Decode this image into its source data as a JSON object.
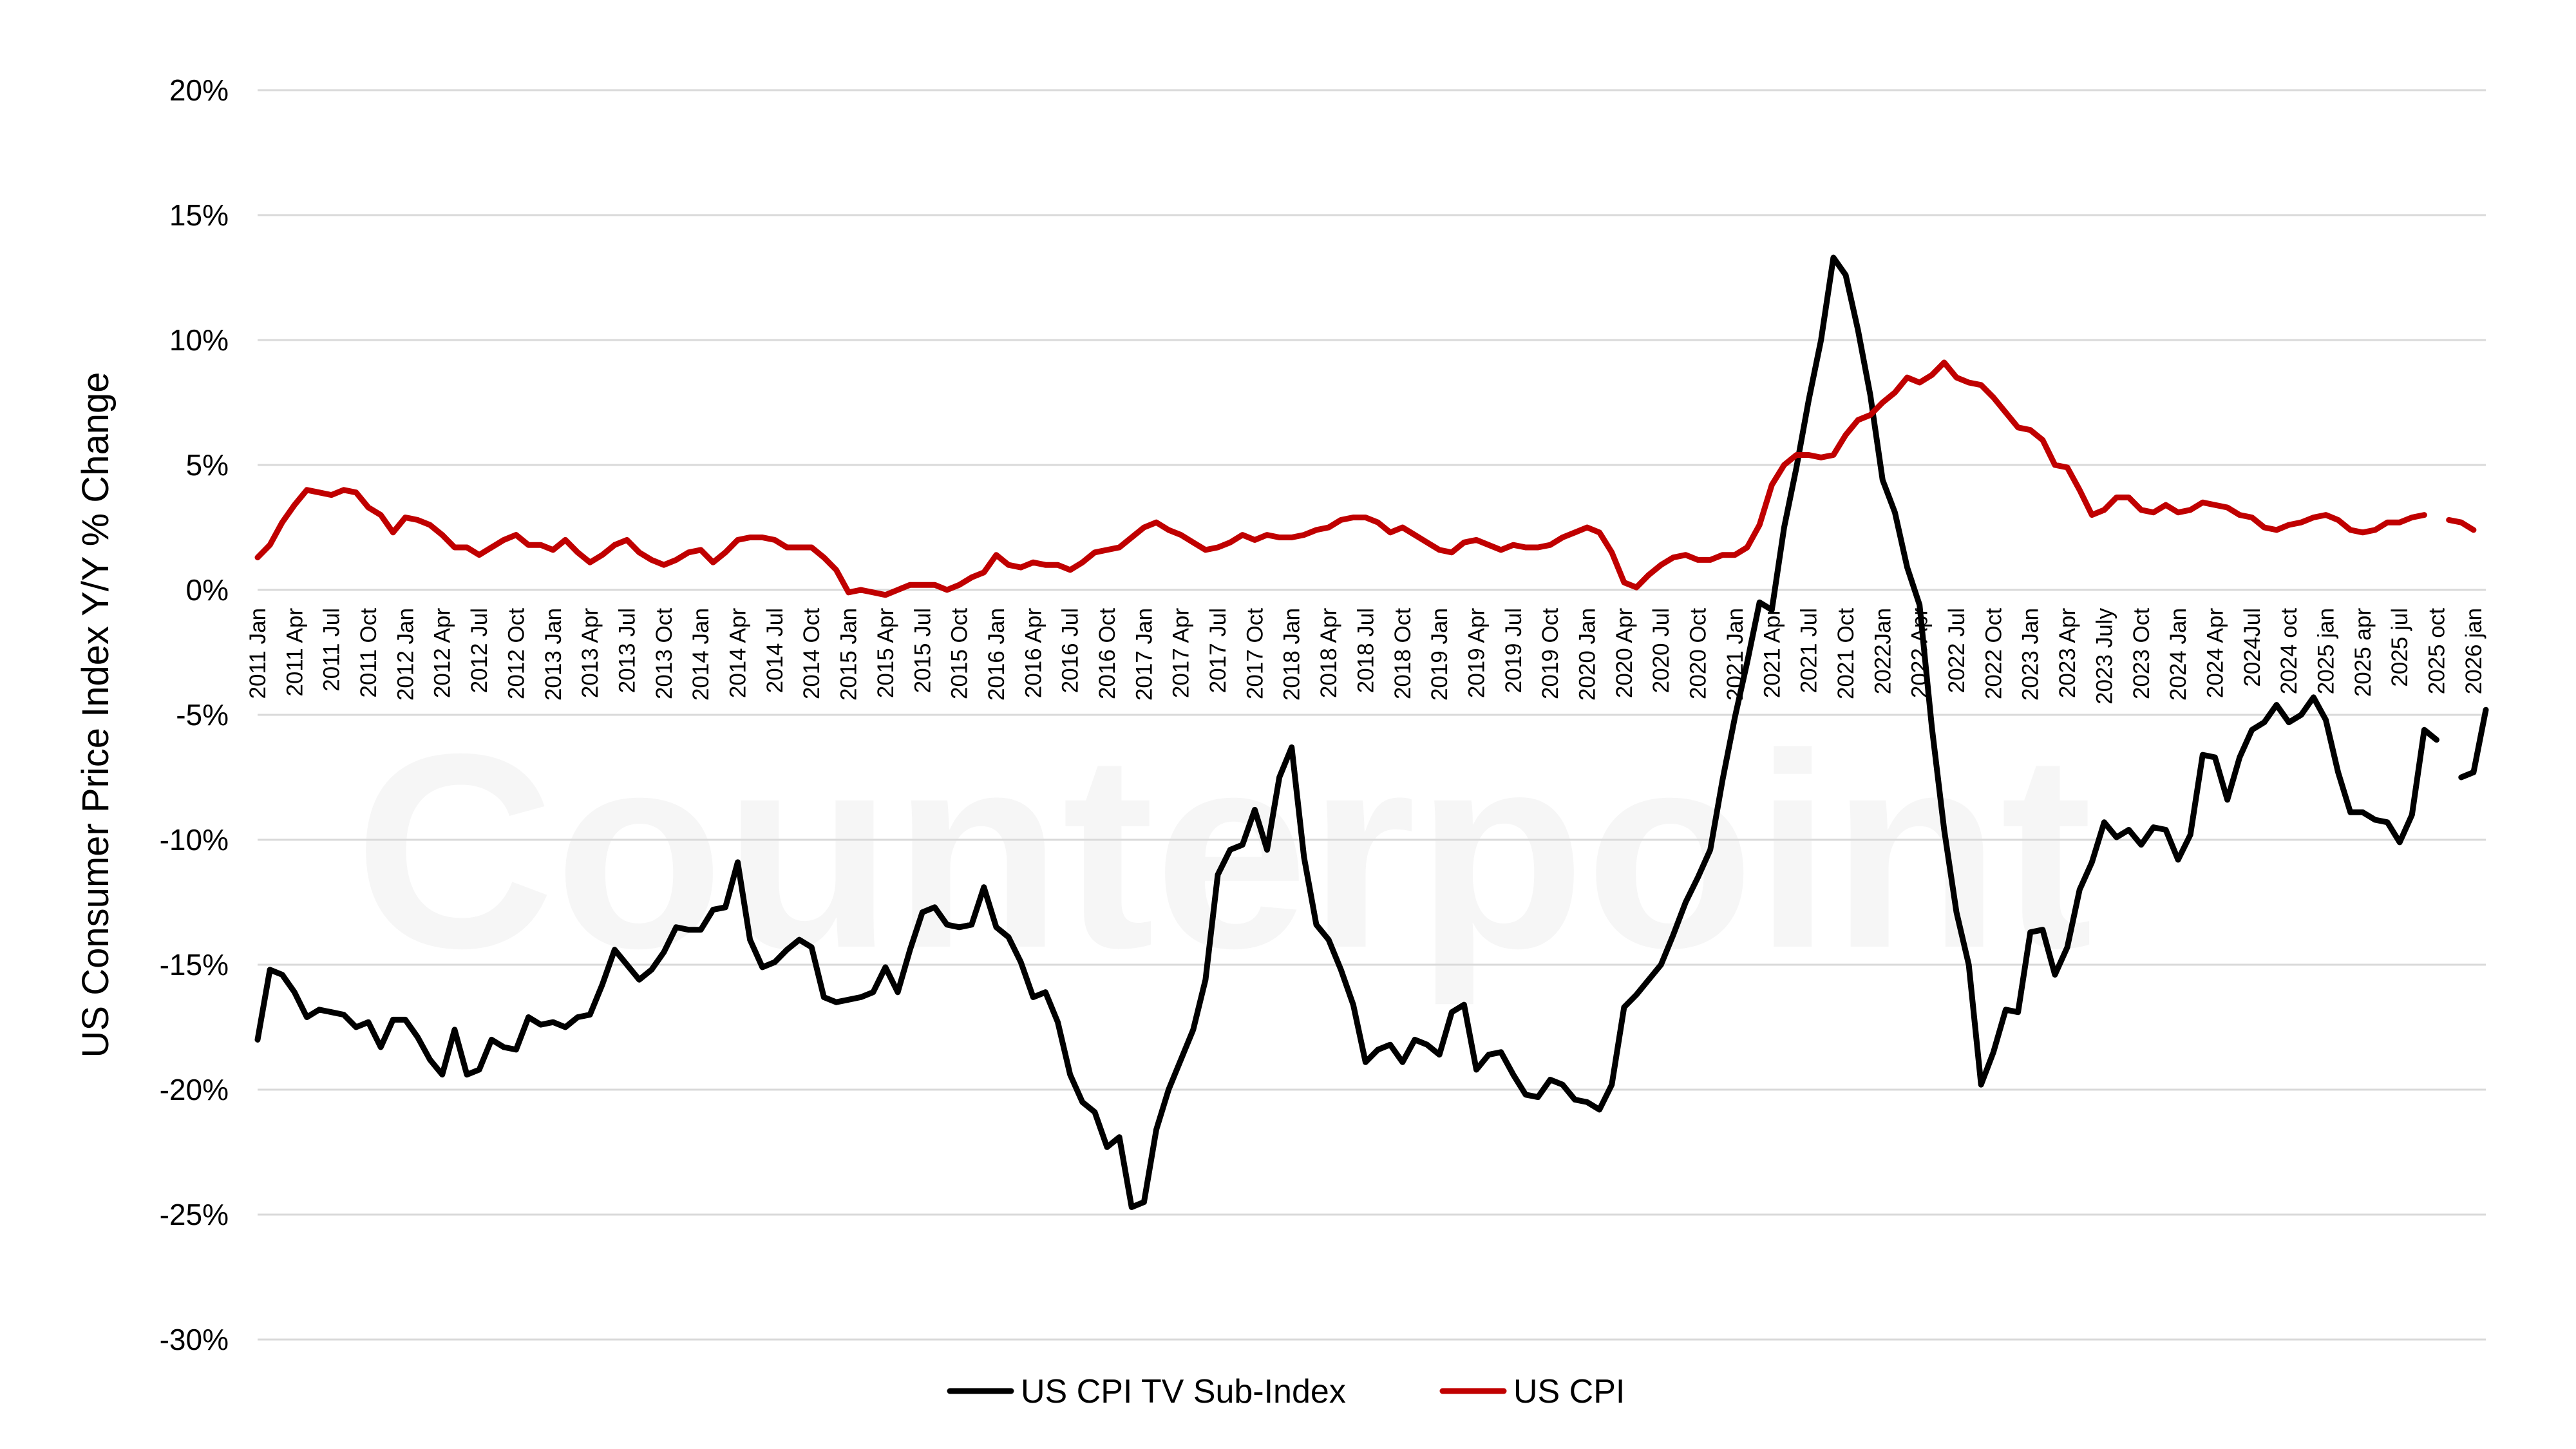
{
  "watermark": "Counterpoint",
  "chart_data": {
    "type": "line",
    "ylabel": "US Consumer Price Index Y/Y % Change",
    "ylim": [
      -30,
      20
    ],
    "yticks": [
      20,
      15,
      10,
      5,
      0,
      -5,
      -10,
      -15,
      -20,
      -25,
      -30
    ],
    "ytick_labels": [
      "20%",
      "15%",
      "10%",
      "5%",
      "0%",
      "-5%",
      "-10%",
      "-15%",
      "-20%",
      "-25%",
      "-30%"
    ],
    "grid": true,
    "legend": "bottom-center",
    "x_labels": [
      {
        "i": 0,
        "label": "2011 Jan"
      },
      {
        "i": 3,
        "label": "2011 Apr"
      },
      {
        "i": 6,
        "label": "2011 Jul"
      },
      {
        "i": 9,
        "label": "2011 Oct"
      },
      {
        "i": 12,
        "label": "2012 Jan"
      },
      {
        "i": 15,
        "label": "2012 Apr"
      },
      {
        "i": 18,
        "label": "2012 Jul"
      },
      {
        "i": 21,
        "label": "2012 Oct"
      },
      {
        "i": 24,
        "label": "2013 Jan"
      },
      {
        "i": 27,
        "label": "2013 Apr"
      },
      {
        "i": 30,
        "label": "2013 Jul"
      },
      {
        "i": 33,
        "label": "2013 Oct"
      },
      {
        "i": 36,
        "label": "2014 Jan"
      },
      {
        "i": 39,
        "label": "2014 Apr"
      },
      {
        "i": 42,
        "label": "2014 Jul"
      },
      {
        "i": 45,
        "label": "2014 Oct"
      },
      {
        "i": 48,
        "label": "2015 Jan"
      },
      {
        "i": 51,
        "label": "2015 Apr"
      },
      {
        "i": 54,
        "label": "2015 Jul"
      },
      {
        "i": 57,
        "label": "2015 Oct"
      },
      {
        "i": 60,
        "label": "2016 Jan"
      },
      {
        "i": 63,
        "label": "2016 Apr"
      },
      {
        "i": 66,
        "label": "2016 Jul"
      },
      {
        "i": 69,
        "label": "2016 Oct"
      },
      {
        "i": 72,
        "label": "2017 Jan"
      },
      {
        "i": 75,
        "label": "2017 Apr"
      },
      {
        "i": 78,
        "label": "2017 Jul"
      },
      {
        "i": 81,
        "label": "2017 Oct"
      },
      {
        "i": 84,
        "label": "2018 Jan"
      },
      {
        "i": 87,
        "label": "2018 Apr"
      },
      {
        "i": 90,
        "label": "2018 Jul"
      },
      {
        "i": 93,
        "label": "2018 Oct"
      },
      {
        "i": 96,
        "label": "2019 Jan"
      },
      {
        "i": 99,
        "label": "2019 Apr"
      },
      {
        "i": 102,
        "label": "2019 Jul"
      },
      {
        "i": 105,
        "label": "2019 Oct"
      },
      {
        "i": 108,
        "label": "2020 Jan"
      },
      {
        "i": 111,
        "label": "2020 Apr"
      },
      {
        "i": 114,
        "label": "2020 Jul"
      },
      {
        "i": 117,
        "label": "2020 Oct"
      },
      {
        "i": 120,
        "label": "2021 Jan"
      },
      {
        "i": 123,
        "label": "2021 Apr"
      },
      {
        "i": 126,
        "label": "2021 Jul"
      },
      {
        "i": 129,
        "label": "2021 Oct"
      },
      {
        "i": 132,
        "label": "2022Jan"
      },
      {
        "i": 135,
        "label": "2022 Apr"
      },
      {
        "i": 138,
        "label": "2022 Jul"
      },
      {
        "i": 141,
        "label": "2022 Oct"
      },
      {
        "i": 144,
        "label": "2023 Jan"
      },
      {
        "i": 147,
        "label": "2023 Apr"
      },
      {
        "i": 150,
        "label": "2023 July"
      },
      {
        "i": 153,
        "label": "2023 Oct"
      },
      {
        "i": 156,
        "label": "2024 Jan"
      },
      {
        "i": 159,
        "label": "2024 Apr"
      },
      {
        "i": 162,
        "label": "2024Jul"
      },
      {
        "i": 165,
        "label": "2024 oct"
      },
      {
        "i": 168,
        "label": "2025 jan"
      },
      {
        "i": 171,
        "label": "2025 apr"
      },
      {
        "i": 174,
        "label": "2025 jul"
      },
      {
        "i": 177,
        "label": "2025 oct"
      },
      {
        "i": 180,
        "label": "2026 jan"
      }
    ],
    "series": [
      {
        "name": "US CPI TV Sub-Index",
        "color": "#000000",
        "values": [
          -18.0,
          -15.2,
          -15.4,
          -16.1,
          -17.1,
          -16.8,
          -16.9,
          -17.0,
          -17.5,
          -17.3,
          -18.3,
          -17.2,
          -17.2,
          -17.9,
          -18.8,
          -19.4,
          -17.6,
          -19.4,
          -19.2,
          -18.0,
          -18.3,
          -18.4,
          -17.1,
          -17.4,
          -17.3,
          -17.5,
          -17.1,
          -17.0,
          -15.8,
          -14.4,
          -15.0,
          -15.6,
          -15.2,
          -14.5,
          -13.5,
          -13.6,
          -13.6,
          -12.8,
          -12.7,
          -10.9,
          -14.0,
          -15.1,
          -14.9,
          -14.4,
          -14.0,
          -14.3,
          -16.3,
          -16.5,
          -16.4,
          -16.3,
          -16.1,
          -15.1,
          -16.1,
          -14.4,
          -12.9,
          -12.7,
          -13.4,
          -13.5,
          -13.4,
          -11.9,
          -13.5,
          -13.9,
          -14.9,
          -16.3,
          -16.1,
          -17.3,
          -19.4,
          -20.5,
          -20.9,
          -22.3,
          -21.9,
          -24.7,
          -24.5,
          -21.6,
          -20.0,
          -18.8,
          -17.6,
          -15.6,
          -11.4,
          -10.4,
          -10.2,
          -8.8,
          -10.4,
          -7.5,
          -6.3,
          -10.7,
          -13.4,
          -14.0,
          -15.2,
          -16.6,
          -18.9,
          -18.4,
          -18.2,
          -18.9,
          -18.0,
          -18.2,
          -18.6,
          -16.9,
          -16.6,
          -19.2,
          -18.6,
          -18.5,
          -19.4,
          -20.2,
          -20.3,
          -19.6,
          -19.8,
          -20.4,
          -20.5,
          -20.8,
          -19.8,
          -16.7,
          -16.2,
          -15.6,
          -15.0,
          -13.8,
          -12.5,
          -11.5,
          -10.4,
          -7.6,
          -5.1,
          -2.9,
          -0.5,
          -0.8,
          2.5,
          4.9,
          7.6,
          10.0,
          13.3,
          12.6,
          10.4,
          7.8,
          4.4,
          3.1,
          0.9,
          -0.6,
          -5.5,
          -9.6,
          -12.9,
          -15.0,
          -19.8,
          -18.5,
          -16.8,
          -16.9,
          -13.7,
          -13.6,
          -15.4,
          -14.3,
          -12.0,
          -10.9,
          -9.3,
          -9.9,
          -9.6,
          -10.2,
          -9.5,
          -9.6,
          -10.8,
          -9.8,
          -6.6,
          -6.7,
          -8.4,
          -6.7,
          -5.6,
          -5.3,
          -4.6,
          -5.3,
          -5.0,
          -4.3,
          -5.2,
          -7.3,
          -8.9,
          -8.9,
          -9.2,
          -9.3,
          -10.1,
          -9.0,
          -5.6,
          -6.0,
          null,
          -7.5,
          -7.3,
          -4.8
        ]
      },
      {
        "name": "US CPI",
        "color": "#c00000",
        "values": [
          1.3,
          1.8,
          2.7,
          3.4,
          4.0,
          3.9,
          3.8,
          4.0,
          3.9,
          3.3,
          3.0,
          2.3,
          2.9,
          2.8,
          2.6,
          2.2,
          1.7,
          1.7,
          1.4,
          1.7,
          2.0,
          2.2,
          1.8,
          1.8,
          1.6,
          2.0,
          1.5,
          1.1,
          1.4,
          1.8,
          2.0,
          1.5,
          1.2,
          1.0,
          1.2,
          1.5,
          1.6,
          1.1,
          1.5,
          2.0,
          2.1,
          2.1,
          2.0,
          1.7,
          1.7,
          1.7,
          1.3,
          0.8,
          -0.1,
          0.0,
          -0.1,
          -0.2,
          0.0,
          0.2,
          0.2,
          0.2,
          0.0,
          0.2,
          0.5,
          0.7,
          1.4,
          1.0,
          0.9,
          1.1,
          1.0,
          1.0,
          0.8,
          1.1,
          1.5,
          1.6,
          1.7,
          2.1,
          2.5,
          2.7,
          2.4,
          2.2,
          1.9,
          1.6,
          1.7,
          1.9,
          2.2,
          2.0,
          2.2,
          2.1,
          2.1,
          2.2,
          2.4,
          2.5,
          2.8,
          2.9,
          2.9,
          2.7,
          2.3,
          2.5,
          2.2,
          1.9,
          1.6,
          1.5,
          1.9,
          2.0,
          1.8,
          1.6,
          1.8,
          1.7,
          1.7,
          1.8,
          2.1,
          2.3,
          2.5,
          2.3,
          1.5,
          0.3,
          0.1,
          0.6,
          1.0,
          1.3,
          1.4,
          1.2,
          1.2,
          1.4,
          1.4,
          1.7,
          2.6,
          4.2,
          5.0,
          5.4,
          5.4,
          5.3,
          5.4,
          6.2,
          6.8,
          7.0,
          7.5,
          7.9,
          8.5,
          8.3,
          8.6,
          9.1,
          8.5,
          8.3,
          8.2,
          7.7,
          7.1,
          6.5,
          6.4,
          6.0,
          5.0,
          4.9,
          4.0,
          3.0,
          3.2,
          3.7,
          3.7,
          3.2,
          3.1,
          3.4,
          3.1,
          3.2,
          3.5,
          3.4,
          3.3,
          3.0,
          2.9,
          2.5,
          2.4,
          2.6,
          2.7,
          2.9,
          3.0,
          2.8,
          2.4,
          2.3,
          2.4,
          2.7,
          2.7,
          2.9,
          3.0,
          null,
          2.8,
          2.7,
          2.4
        ]
      }
    ]
  }
}
